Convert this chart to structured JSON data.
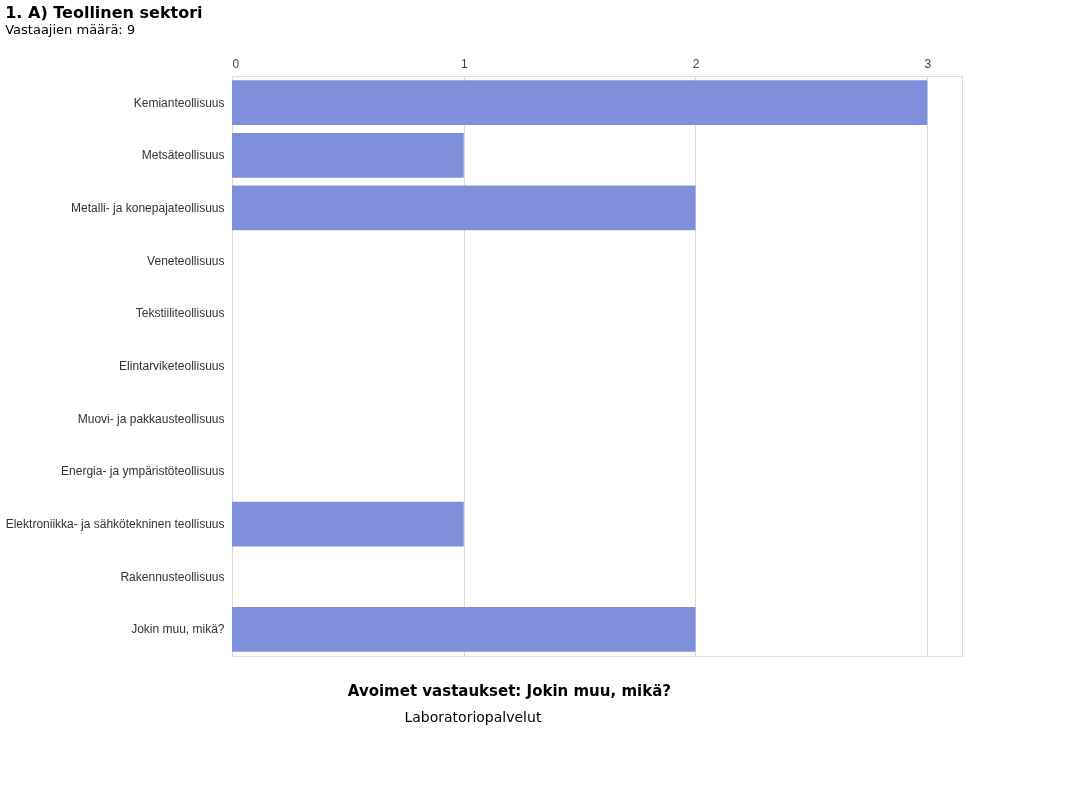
{
  "chart_data": {
    "type": "bar",
    "orientation": "horizontal",
    "title": "1. A) Teollinen sektori",
    "subtitle": "Vastaajien määrä: 9",
    "categories": [
      "Kemianteollisuus",
      "Metsäteollisuus",
      "Metalli- ja konepajateollisuus",
      "Veneteollisuus",
      "Tekstiiliteollisuus",
      "Elintarviketeollisuus",
      "Muovi- ja pakkausteollisuus",
      "Energia- ja ympäristöteollisuus",
      "Elektroniikka- ja sähkötekninen teollisuus",
      "Rakennusteollisuus",
      "Jokin muu, mikä?"
    ],
    "values": [
      3,
      1,
      2,
      0,
      0,
      0,
      0,
      0,
      1,
      0,
      2
    ],
    "color": "#7f8fdc",
    "xlim": [
      0,
      3.15
    ],
    "xticks": [
      0,
      1,
      2,
      3
    ],
    "grid": "x",
    "annotations": [
      "Avoimet vastaukset: Jokin muu, mikä?",
      "Laboratoriopalvelut"
    ]
  }
}
